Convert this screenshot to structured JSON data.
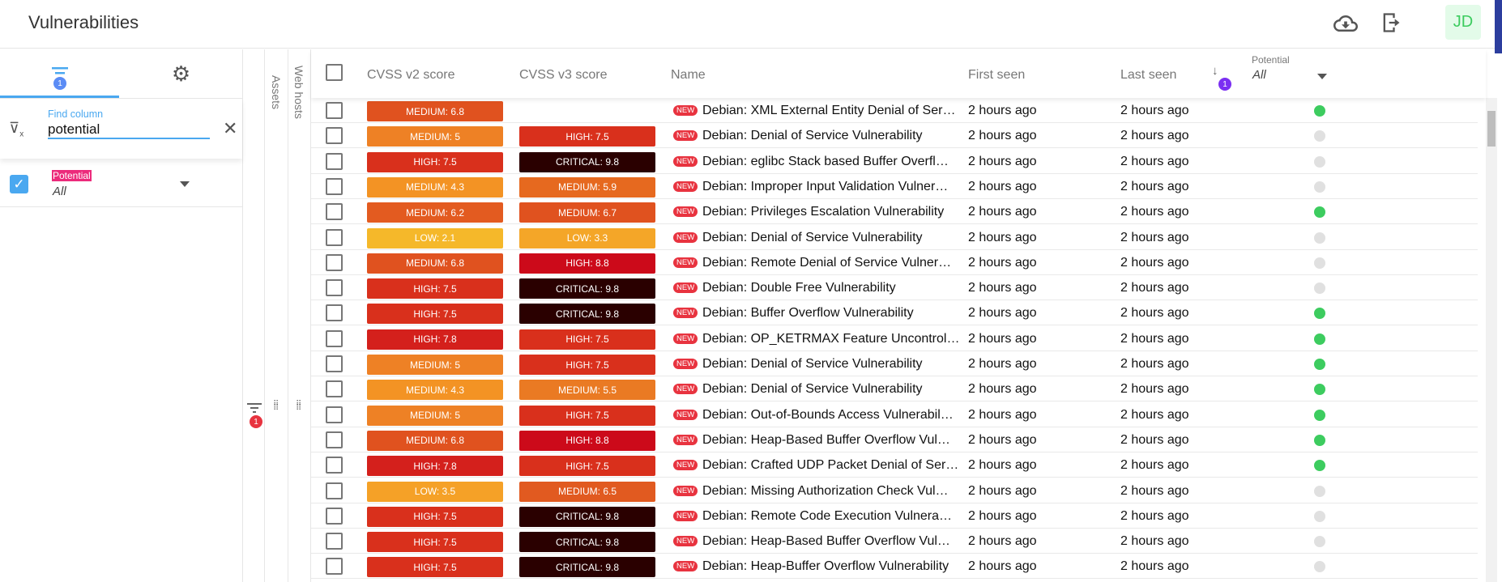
{
  "app": {
    "title": "Vulnerabilities",
    "avatar": "JD",
    "icons": [
      "cloud-download-icon",
      "logout-icon"
    ]
  },
  "sidebar": {
    "filter_badge": "1",
    "find_label": "Find column",
    "find_value": "potential",
    "column": {
      "label": "Potential",
      "value": "All",
      "checked": true
    }
  },
  "strips": {
    "filter_badge": "1",
    "assets": "Assets",
    "web_hosts": "Web hosts"
  },
  "table": {
    "headers": {
      "cvss2": "CVSS v2 score",
      "cvss3": "CVSS v3 score",
      "name": "Name",
      "first_seen": "First seen",
      "last_seen": "Last seen",
      "sort_badge": "1",
      "potential_label": "Potential",
      "potential_value": "All"
    },
    "new_label": "NEW",
    "severity_colors": {
      "LOW: 2.1": "#f5b82a",
      "LOW: 3.3": "#f4a628",
      "LOW: 3.5": "#f5a127",
      "MEDIUM: 4.3": "#f39324",
      "MEDIUM: 5": "#ee8125",
      "MEDIUM: 5.5": "#ea7a23",
      "MEDIUM: 5.9": "#e6691f",
      "MEDIUM: 6.2": "#e35b20",
      "MEDIUM: 6.5": "#e15a20",
      "MEDIUM: 6.7": "#e0521f",
      "MEDIUM: 6.8": "#e0521f",
      "HIGH: 7.5": "#d9301c",
      "HIGH: 7.8": "#d4201c",
      "HIGH: 8.8": "#cc0a1a",
      "CRITICAL: 9.8": "#2a0000"
    },
    "potential_colors": {
      "yes": "#3dcc5f",
      "no": "#e0e0e0"
    },
    "rows": [
      {
        "v2": "MEDIUM: 6.8",
        "v3": "",
        "name": "Debian: XML External Entity Denial of Ser…",
        "first": "2 hours ago",
        "last": "2 hours ago",
        "potential": "yes"
      },
      {
        "v2": "MEDIUM: 5",
        "v3": "HIGH: 7.5",
        "name": "Debian: Denial of Service Vulnerability",
        "first": "2 hours ago",
        "last": "2 hours ago",
        "potential": "no"
      },
      {
        "v2": "HIGH: 7.5",
        "v3": "CRITICAL: 9.8",
        "name": "Debian: eglibc Stack based Buffer Overfl…",
        "first": "2 hours ago",
        "last": "2 hours ago",
        "potential": "no"
      },
      {
        "v2": "MEDIUM: 4.3",
        "v3": "MEDIUM: 5.9",
        "name": "Debian: Improper Input Validation Vulner…",
        "first": "2 hours ago",
        "last": "2 hours ago",
        "potential": "no"
      },
      {
        "v2": "MEDIUM: 6.2",
        "v3": "MEDIUM: 6.7",
        "name": "Debian: Privileges Escalation Vulnerability",
        "first": "2 hours ago",
        "last": "2 hours ago",
        "potential": "yes"
      },
      {
        "v2": "LOW: 2.1",
        "v3": "LOW: 3.3",
        "name": "Debian: Denial of Service Vulnerability",
        "first": "2 hours ago",
        "last": "2 hours ago",
        "potential": "no"
      },
      {
        "v2": "MEDIUM: 6.8",
        "v3": "HIGH: 8.8",
        "name": "Debian: Remote Denial of Service Vulner…",
        "first": "2 hours ago",
        "last": "2 hours ago",
        "potential": "no"
      },
      {
        "v2": "HIGH: 7.5",
        "v3": "CRITICAL: 9.8",
        "name": "Debian: Double Free Vulnerability",
        "first": "2 hours ago",
        "last": "2 hours ago",
        "potential": "no"
      },
      {
        "v2": "HIGH: 7.5",
        "v3": "CRITICAL: 9.8",
        "name": "Debian: Buffer Overflow Vulnerability",
        "first": "2 hours ago",
        "last": "2 hours ago",
        "potential": "yes"
      },
      {
        "v2": "HIGH: 7.8",
        "v3": "HIGH: 7.5",
        "name": "Debian: OP_KETRMAX Feature Uncontrol…",
        "first": "2 hours ago",
        "last": "2 hours ago",
        "potential": "yes"
      },
      {
        "v2": "MEDIUM: 5",
        "v3": "HIGH: 7.5",
        "name": "Debian: Denial of Service Vulnerability",
        "first": "2 hours ago",
        "last": "2 hours ago",
        "potential": "yes"
      },
      {
        "v2": "MEDIUM: 4.3",
        "v3": "MEDIUM: 5.5",
        "name": "Debian: Denial of Service Vulnerability",
        "first": "2 hours ago",
        "last": "2 hours ago",
        "potential": "yes"
      },
      {
        "v2": "MEDIUM: 5",
        "v3": "HIGH: 7.5",
        "name": "Debian: Out-of-Bounds Access Vulnerabil…",
        "first": "2 hours ago",
        "last": "2 hours ago",
        "potential": "yes"
      },
      {
        "v2": "MEDIUM: 6.8",
        "v3": "HIGH: 8.8",
        "name": "Debian: Heap-Based Buffer Overflow Vul…",
        "first": "2 hours ago",
        "last": "2 hours ago",
        "potential": "yes"
      },
      {
        "v2": "HIGH: 7.8",
        "v3": "HIGH: 7.5",
        "name": "Debian: Crafted UDP Packet Denial of Ser…",
        "first": "2 hours ago",
        "last": "2 hours ago",
        "potential": "yes"
      },
      {
        "v2": "LOW: 3.5",
        "v3": "MEDIUM: 6.5",
        "name": "Debian: Missing Authorization Check Vul…",
        "first": "2 hours ago",
        "last": "2 hours ago",
        "potential": "no"
      },
      {
        "v2": "HIGH: 7.5",
        "v3": "CRITICAL: 9.8",
        "name": "Debian: Remote Code Execution Vulnera…",
        "first": "2 hours ago",
        "last": "2 hours ago",
        "potential": "no"
      },
      {
        "v2": "HIGH: 7.5",
        "v3": "CRITICAL: 9.8",
        "name": "Debian: Heap-Based Buffer Overflow Vul…",
        "first": "2 hours ago",
        "last": "2 hours ago",
        "potential": "no"
      },
      {
        "v2": "HIGH: 7.5",
        "v3": "CRITICAL: 9.8",
        "name": "Debian: Heap-Buffer Overflow Vulnerability",
        "first": "2 hours ago",
        "last": "2 hours ago",
        "potential": "no"
      }
    ]
  }
}
